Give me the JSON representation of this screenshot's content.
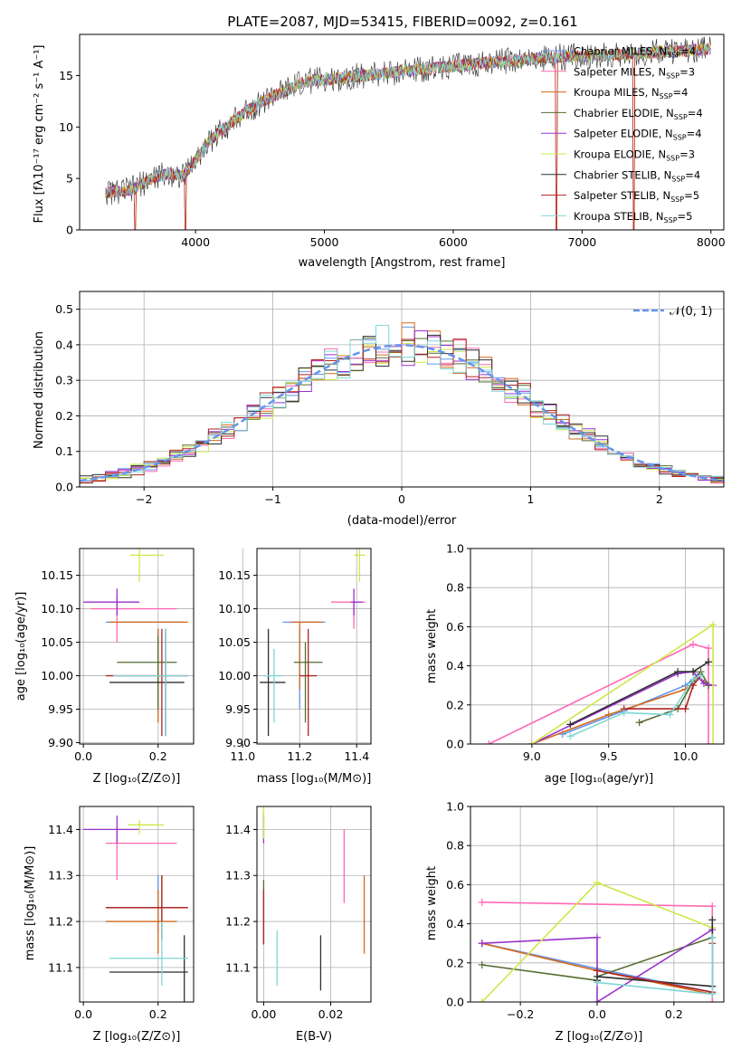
{
  "title": "PLATE=2087, MJD=53415, FIBERID=0092, z=0.161",
  "panels": {
    "spectrum": {
      "xlabel": "wavelength [Angstrom, rest frame]",
      "ylabel": "Flux [fλ10⁻¹⁷ erg cm⁻² s⁻¹ A⁻¹]",
      "xticks": [
        "4000",
        "5000",
        "6000",
        "7000",
        "8000"
      ],
      "yticks": [
        "0",
        "5",
        "10",
        "15"
      ]
    },
    "histogram": {
      "xlabel": "(data-model)/error",
      "ylabel": "Normed distribution",
      "xticks": [
        "−2",
        "−1",
        "0",
        "1",
        "2"
      ],
      "yticks": [
        "0.0",
        "0.1",
        "0.2",
        "0.3",
        "0.4",
        "0.5"
      ],
      "normal_label": "𝒩(0, 1)"
    },
    "z_age": {
      "xlabel": "Z [log₁₀(Z/Z⊙)]",
      "ylabel": "age  [log₁₀(age/yr)]",
      "xticks": [
        "0.0",
        "0.2"
      ],
      "yticks": [
        "9.90",
        "9.95",
        "10.00",
        "10.05",
        "10.10",
        "10.15"
      ]
    },
    "mass_age": {
      "xlabel": "mass [log₁₀(M/M⊙)]",
      "xticks": [
        "11.0",
        "11.2",
        "11.4"
      ],
      "yticks": [
        "9.90",
        "9.95",
        "10.00",
        "10.05",
        "10.10",
        "10.15"
      ]
    },
    "age_weight": {
      "xlabel": "age  [log₁₀(age/yr)]",
      "ylabel": "mass weight",
      "xticks": [
        "9.0",
        "9.5",
        "10.0"
      ],
      "yticks": [
        "0.0",
        "0.2",
        "0.4",
        "0.6",
        "0.8",
        "1.0"
      ]
    },
    "z_mass": {
      "xlabel": "Z [log₁₀(Z/Z⊙)]",
      "ylabel": "mass [log₁₀(M/M⊙)]",
      "xticks": [
        "0.0",
        "0.2"
      ],
      "yticks": [
        "11.1",
        "11.2",
        "11.3",
        "11.4"
      ]
    },
    "ebv_mass": {
      "xlabel": "E(B-V)",
      "xticks": [
        "0.00",
        "0.02"
      ],
      "yticks": [
        "11.1",
        "11.2",
        "11.3",
        "11.4"
      ]
    },
    "z_weight": {
      "xlabel": "Z [log₁₀(Z/Z⊙)]",
      "ylabel": "mass weight",
      "xticks": [
        "−0.2",
        "0.0",
        "0.2"
      ],
      "yticks": [
        "0.0",
        "0.2",
        "0.4",
        "0.6",
        "0.8",
        "1.0"
      ]
    }
  },
  "chart_data": {
    "type": "multi-panel",
    "models": [
      {
        "name": "Chabrier MILES, N",
        "sub": "SSP",
        "n": "=4",
        "color": "#6495ed"
      },
      {
        "name": "Salpeter MILES, N",
        "sub": "SSP",
        "n": "=3",
        "color": "#ff69b4"
      },
      {
        "name": "Kroupa MILES, N",
        "sub": "SSP",
        "n": "=4",
        "color": "#d2691e"
      },
      {
        "name": "Chabrier ELODIE, N",
        "sub": "SSP",
        "n": "=4",
        "color": "#556b2f"
      },
      {
        "name": "Salpeter ELODIE, N",
        "sub": "SSP",
        "n": "=4",
        "color": "#9932cc"
      },
      {
        "name": "Kroupa ELODIE, N",
        "sub": "SSP",
        "n": "=3",
        "color": "#cde84a"
      },
      {
        "name": "Chabrier STELIB, N",
        "sub": "SSP",
        "n": "=4",
        "color": "#2f2f2f"
      },
      {
        "name": "Salpeter STELIB, N",
        "sub": "SSP",
        "n": "=5",
        "color": "#b22222"
      },
      {
        "name": "Kroupa STELIB, N",
        "sub": "SSP",
        "n": "=5",
        "color": "#7fd6d6"
      }
    ],
    "spectrum": {
      "xlim": [
        3100,
        8100
      ],
      "ylim": [
        0,
        19
      ],
      "shape": [
        [
          3300,
          3.6
        ],
        [
          3500,
          3.9
        ],
        [
          3600,
          4.6
        ],
        [
          3700,
          5.2
        ],
        [
          3800,
          5.5
        ],
        [
          3900,
          5.2
        ],
        [
          4000,
          6.8
        ],
        [
          4100,
          8.5
        ],
        [
          4200,
          9.7
        ],
        [
          4300,
          10.6
        ],
        [
          4400,
          11.6
        ],
        [
          4500,
          12.3
        ],
        [
          4600,
          13.0
        ],
        [
          4700,
          13.5
        ],
        [
          4800,
          14.2
        ],
        [
          4900,
          14.5
        ],
        [
          5000,
          14.6
        ],
        [
          5100,
          14.7
        ],
        [
          5200,
          14.9
        ],
        [
          5400,
          15.1
        ],
        [
          5600,
          15.4
        ],
        [
          5800,
          15.7
        ],
        [
          6000,
          15.9
        ],
        [
          6200,
          16.2
        ],
        [
          6400,
          16.4
        ],
        [
          6600,
          16.6
        ],
        [
          6800,
          16.8
        ],
        [
          7000,
          16.9
        ],
        [
          7200,
          17.0
        ],
        [
          7400,
          17.1
        ],
        [
          7600,
          17.3
        ],
        [
          7800,
          17.4
        ],
        [
          8000,
          17.6
        ]
      ],
      "dips": [
        [
          3530,
          0
        ],
        [
          3920,
          0
        ],
        [
          6800,
          0
        ],
        [
          7400,
          0
        ]
      ]
    },
    "histogram": {
      "xlim": [
        -2.5,
        2.5
      ],
      "ylim": [
        0,
        0.55
      ],
      "bin_width": 0.1
    },
    "z_age": {
      "xlim": [
        -0.01,
        0.295
      ],
      "ylim": [
        9.898,
        10.19
      ],
      "points": [
        {
          "m": 0,
          "x": 0.2,
          "y": 10.08,
          "ex": [
            0.06,
            0.27
          ],
          "ey": [
            9.95,
            10.07
          ]
        },
        {
          "m": 1,
          "x": 0.09,
          "y": 10.1,
          "ex": [
            0.02,
            0.25
          ],
          "ey": [
            10.05,
            10.12
          ]
        },
        {
          "m": 2,
          "x": 0.2,
          "y": 10.08,
          "ex": [
            0.07,
            0.28
          ],
          "ey": [
            9.93,
            10.07
          ]
        },
        {
          "m": 3,
          "x": 0.2,
          "y": 10.02,
          "ex": [
            0.09,
            0.25
          ],
          "ey": [
            9.95,
            10.06
          ]
        },
        {
          "m": 4,
          "x": 0.09,
          "y": 10.11,
          "ex": [
            0.0,
            0.15
          ],
          "ey": [
            10.09,
            10.13
          ]
        },
        {
          "m": 5,
          "x": 0.15,
          "y": 10.18,
          "ex": [
            0.125,
            0.215
          ],
          "ey": [
            10.14,
            10.19
          ]
        },
        {
          "m": 6,
          "x": 0.22,
          "y": 9.99,
          "ex": [
            0.07,
            0.27
          ],
          "ey": [
            9.91,
            10.07
          ]
        },
        {
          "m": 7,
          "x": 0.21,
          "y": 10.0,
          "ex": [
            0.06,
            0.28
          ],
          "ey": [
            9.91,
            10.07
          ]
        },
        {
          "m": 8,
          "x": 0.22,
          "y": 10.0,
          "ex": [
            0.08,
            0.28
          ],
          "ey": [
            9.91,
            10.07
          ]
        }
      ]
    },
    "mass_age": {
      "xlim": [
        11.05,
        11.45
      ],
      "ylim": [
        9.898,
        10.19
      ],
      "points": [
        {
          "m": 0,
          "x": 11.2,
          "y": 10.08,
          "ex": [
            11.14,
            11.29
          ],
          "ey": [
            9.95,
            10.07
          ]
        },
        {
          "m": 1,
          "x": 11.39,
          "y": 10.11,
          "ex": [
            11.31,
            11.43
          ],
          "ey": [
            10.07,
            10.11
          ]
        },
        {
          "m": 2,
          "x": 11.2,
          "y": 10.08,
          "ex": [
            11.17,
            11.28
          ],
          "ey": [
            9.98,
            10.08
          ]
        },
        {
          "m": 3,
          "x": 11.22,
          "y": 10.02,
          "ex": [
            11.18,
            11.28
          ],
          "ey": [
            9.93,
            10.05
          ]
        },
        {
          "m": 4,
          "x": 11.39,
          "y": 10.11,
          "ex": [
            11.38,
            11.42
          ],
          "ey": [
            10.09,
            10.13
          ]
        },
        {
          "m": 5,
          "x": 11.41,
          "y": 10.18,
          "ex": [
            11.39,
            11.43
          ],
          "ey": [
            10.14,
            10.19
          ]
        },
        {
          "m": 6,
          "x": 11.09,
          "y": 9.99,
          "ex": [
            11.06,
            11.15
          ],
          "ey": [
            9.91,
            10.07
          ]
        },
        {
          "m": 7,
          "x": 11.23,
          "y": 10.0,
          "ex": [
            11.2,
            11.26
          ],
          "ey": [
            9.91,
            10.07
          ]
        },
        {
          "m": 8,
          "x": 11.11,
          "y": 10.0,
          "ex": [
            11.07,
            11.14
          ],
          "ey": [
            9.93,
            10.04
          ]
        }
      ]
    },
    "age_weight": {
      "xlim": [
        8.6,
        10.25
      ],
      "ylim": [
        0,
        1
      ],
      "series": [
        {
          "m": 0,
          "x": [
            9.2,
            9.6,
            10.0,
            10.08,
            10.15
          ],
          "y": [
            0.05,
            0.17,
            0.3,
            0.35,
            0.3
          ]
        },
        {
          "m": 1,
          "x": [
            8.72,
            10.05,
            10.15,
            10.15
          ],
          "y": [
            0.0,
            0.51,
            0.49,
            0.0
          ]
        },
        {
          "m": 2,
          "x": [
            9.0,
            9.5,
            10.0,
            10.08,
            10.15
          ],
          "y": [
            0.0,
            0.15,
            0.28,
            0.34,
            0.3
          ]
        },
        {
          "m": 3,
          "x": [
            9.7,
            9.95,
            10.05,
            10.1,
            10.15
          ],
          "y": [
            0.11,
            0.18,
            0.32,
            0.37,
            0.3
          ]
        },
        {
          "m": 4,
          "x": [
            9.0,
            9.95,
            10.05,
            10.12,
            10.18
          ],
          "y": [
            0.0,
            0.36,
            0.37,
            0.31,
            0.3
          ]
        },
        {
          "m": 5,
          "x": [
            9.0,
            10.18,
            10.18
          ],
          "y": [
            0.0,
            0.61,
            0.0
          ]
        },
        {
          "m": 6,
          "x": [
            9.25,
            9.95,
            10.05,
            10.15
          ],
          "y": [
            0.1,
            0.37,
            0.37,
            0.42
          ]
        },
        {
          "m": 7,
          "x": [
            9.6,
            10.0,
            10.05,
            10.1
          ],
          "y": [
            0.18,
            0.18,
            0.3,
            0.35
          ]
        },
        {
          "m": 8,
          "x": [
            9.25,
            9.6,
            9.9,
            10.05,
            10.1
          ],
          "y": [
            0.04,
            0.16,
            0.15,
            0.33,
            0.35
          ]
        }
      ]
    },
    "z_mass": {
      "xlim": [
        -0.01,
        0.295
      ],
      "ylim": [
        11.025,
        11.45
      ],
      "points": [
        {
          "m": 0,
          "x": 0.2,
          "y": 11.23,
          "ex": [
            0.06,
            0.27
          ],
          "ey": [
            11.18,
            11.3
          ]
        },
        {
          "m": 1,
          "x": 0.09,
          "y": 11.37,
          "ex": [
            0.06,
            0.25
          ],
          "ey": [
            11.29,
            11.4
          ]
        },
        {
          "m": 2,
          "x": 0.2,
          "y": 11.2,
          "ex": [
            0.06,
            0.25
          ],
          "ey": [
            11.13,
            11.27
          ]
        },
        {
          "m": 3,
          "x": 0.21,
          "y": 11.23,
          "ex": [
            0.06,
            0.28
          ],
          "ey": [
            11.16,
            11.3
          ]
        },
        {
          "m": 4,
          "x": 0.09,
          "y": 11.4,
          "ex": [
            0.0,
            0.15
          ],
          "ey": [
            11.37,
            11.43
          ]
        },
        {
          "m": 5,
          "x": 0.15,
          "y": 11.41,
          "ex": [
            0.12,
            0.215
          ],
          "ey": [
            11.39,
            11.42
          ]
        },
        {
          "m": 6,
          "x": 0.27,
          "y": 11.09,
          "ex": [
            0.07,
            0.28
          ],
          "ey": [
            11.01,
            11.17
          ]
        },
        {
          "m": 7,
          "x": 0.21,
          "y": 11.23,
          "ex": [
            0.06,
            0.28
          ],
          "ey": [
            11.16,
            11.3
          ]
        },
        {
          "m": 8,
          "x": 0.21,
          "y": 11.12,
          "ex": [
            0.07,
            0.28
          ],
          "ey": [
            11.06,
            11.2
          ]
        }
      ]
    },
    "ebv_mass": {
      "xlim": [
        -0.002,
        0.032
      ],
      "ylim": [
        11.025,
        11.45
      ],
      "points": [
        {
          "m": 0,
          "x": 0.0,
          "y": 11.41,
          "ey": [
            11.38,
            11.44
          ]
        },
        {
          "m": 1,
          "x": 0.024,
          "y": 11.37,
          "ey": [
            11.24,
            11.4
          ]
        },
        {
          "m": 2,
          "x": 0.03,
          "y": 11.2,
          "ey": [
            11.13,
            11.3
          ]
        },
        {
          "m": 3,
          "x": 0.0,
          "y": 11.22,
          "ey": [
            11.15,
            11.29
          ]
        },
        {
          "m": 4,
          "x": 0.0,
          "y": 11.4,
          "ey": [
            11.37,
            11.43
          ]
        },
        {
          "m": 5,
          "x": 0.0,
          "y": 11.42,
          "ey": [
            11.38,
            11.45
          ]
        },
        {
          "m": 6,
          "x": 0.017,
          "y": 11.09,
          "ey": [
            11.05,
            11.17
          ]
        },
        {
          "m": 7,
          "x": 0.0,
          "y": 11.2,
          "ey": [
            11.15,
            11.27
          ]
        },
        {
          "m": 8,
          "x": 0.004,
          "y": 11.12,
          "ey": [
            11.06,
            11.18
          ]
        }
      ]
    },
    "z_weight": {
      "xlim": [
        -0.33,
        0.33
      ],
      "ylim": [
        0,
        1
      ],
      "series": [
        {
          "m": 0,
          "x": [
            -0.3,
            0.0,
            0.3
          ],
          "y": [
            0.3,
            0.17,
            0.05
          ]
        },
        {
          "m": 1,
          "x": [
            -0.3,
            0.3,
            0.3
          ],
          "y": [
            0.51,
            0.49,
            0.0
          ]
        },
        {
          "m": 2,
          "x": [
            -0.3,
            0.0,
            0.3
          ],
          "y": [
            0.3,
            0.16,
            0.04
          ]
        },
        {
          "m": 3,
          "x": [
            -0.3,
            0.0,
            0.0,
            0.3
          ],
          "y": [
            0.19,
            0.11,
            0.13,
            0.33
          ]
        },
        {
          "m": 4,
          "x": [
            -0.3,
            0.0,
            0.0,
            0.3
          ],
          "y": [
            0.3,
            0.33,
            0.0,
            0.37
          ]
        },
        {
          "m": 5,
          "x": [
            -0.3,
            0.0,
            0.3
          ],
          "y": [
            0.0,
            0.61,
            0.38
          ]
        },
        {
          "m": 6,
          "x": [
            0.0,
            0.0,
            0.3,
            0.3
          ],
          "y": [
            0.11,
            0.13,
            0.08,
            0.42
          ]
        },
        {
          "m": 7,
          "x": [
            0.0,
            0.3,
            0.3
          ],
          "y": [
            0.16,
            0.05,
            0.3
          ]
        },
        {
          "m": 8,
          "x": [
            0.0,
            0.3,
            0.3
          ],
          "y": [
            0.1,
            0.04,
            0.33
          ]
        }
      ]
    }
  }
}
